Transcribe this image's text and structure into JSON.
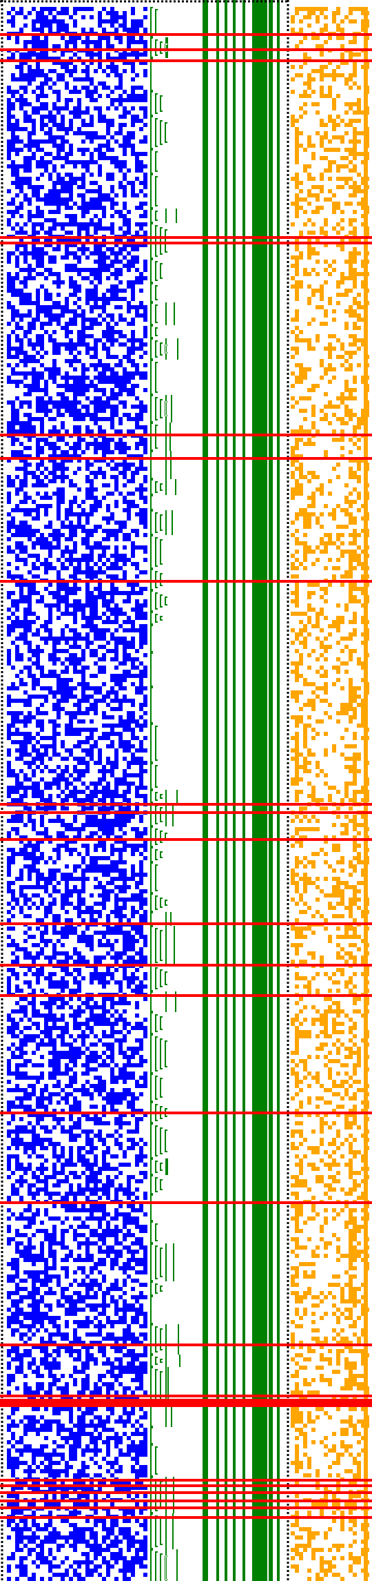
{
  "figure": {
    "kind": "pixel-pattern visualization",
    "background": "#ffffff",
    "palette": {
      "blue_noise": "#0000ff",
      "green_bars": "#008000",
      "orange_noise": "#ffa500",
      "red_lines": "#ff0000",
      "dotted_borders": "#000000"
    },
    "regions": [
      {
        "name": "blue-noise-field",
        "color": "blue_noise",
        "pattern": "random"
      },
      {
        "name": "green-bracket-column",
        "color": "green_bars",
        "pattern": "nested-brackets"
      },
      {
        "name": "green-vertical-bars",
        "color": "green_bars",
        "pattern": "vertical-lines",
        "count": 8
      },
      {
        "name": "orange-noise-field",
        "color": "orange_noise",
        "pattern": "random-with-columns"
      }
    ],
    "red_line_count": 30,
    "dotted_border_count": 3
  }
}
